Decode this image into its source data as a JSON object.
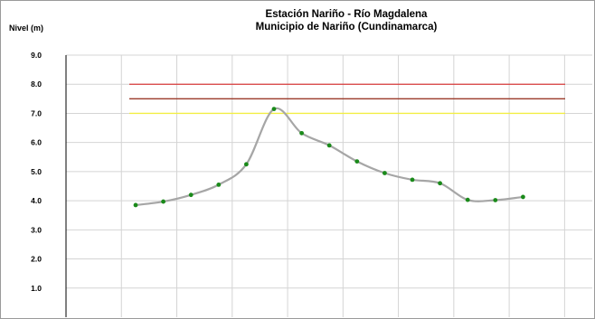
{
  "chart_data": {
    "type": "line",
    "title": "Estación Nariño  - Río Magdalena",
    "subtitle": "Municipio de Nariño (Cundinamarca)",
    "ylabel": "Nivel (m)",
    "xlabel": "",
    "ylim": [
      0,
      9
    ],
    "yticks": [
      "1.0",
      "2.0",
      "3.0",
      "4.0",
      "5.0",
      "6.0",
      "7.0",
      "8.0",
      "9.0"
    ],
    "grid": true,
    "line_color": "#a6a6a6",
    "marker_color": "#1a8a1a",
    "thresholds": [
      {
        "value": 8.0,
        "color": "#d93b3b"
      },
      {
        "value": 7.5,
        "color": "#9b3a2a"
      },
      {
        "value": 7.0,
        "color": "#f2ee44"
      }
    ],
    "x": [
      0,
      1,
      2,
      3,
      4,
      5,
      6,
      7,
      8,
      9,
      10,
      11,
      12,
      13,
      14
    ],
    "values": [
      3.85,
      3.97,
      4.2,
      4.55,
      5.25,
      7.15,
      6.32,
      5.9,
      5.35,
      4.95,
      4.72,
      4.6,
      4.03,
      4.02,
      4.13
    ]
  }
}
